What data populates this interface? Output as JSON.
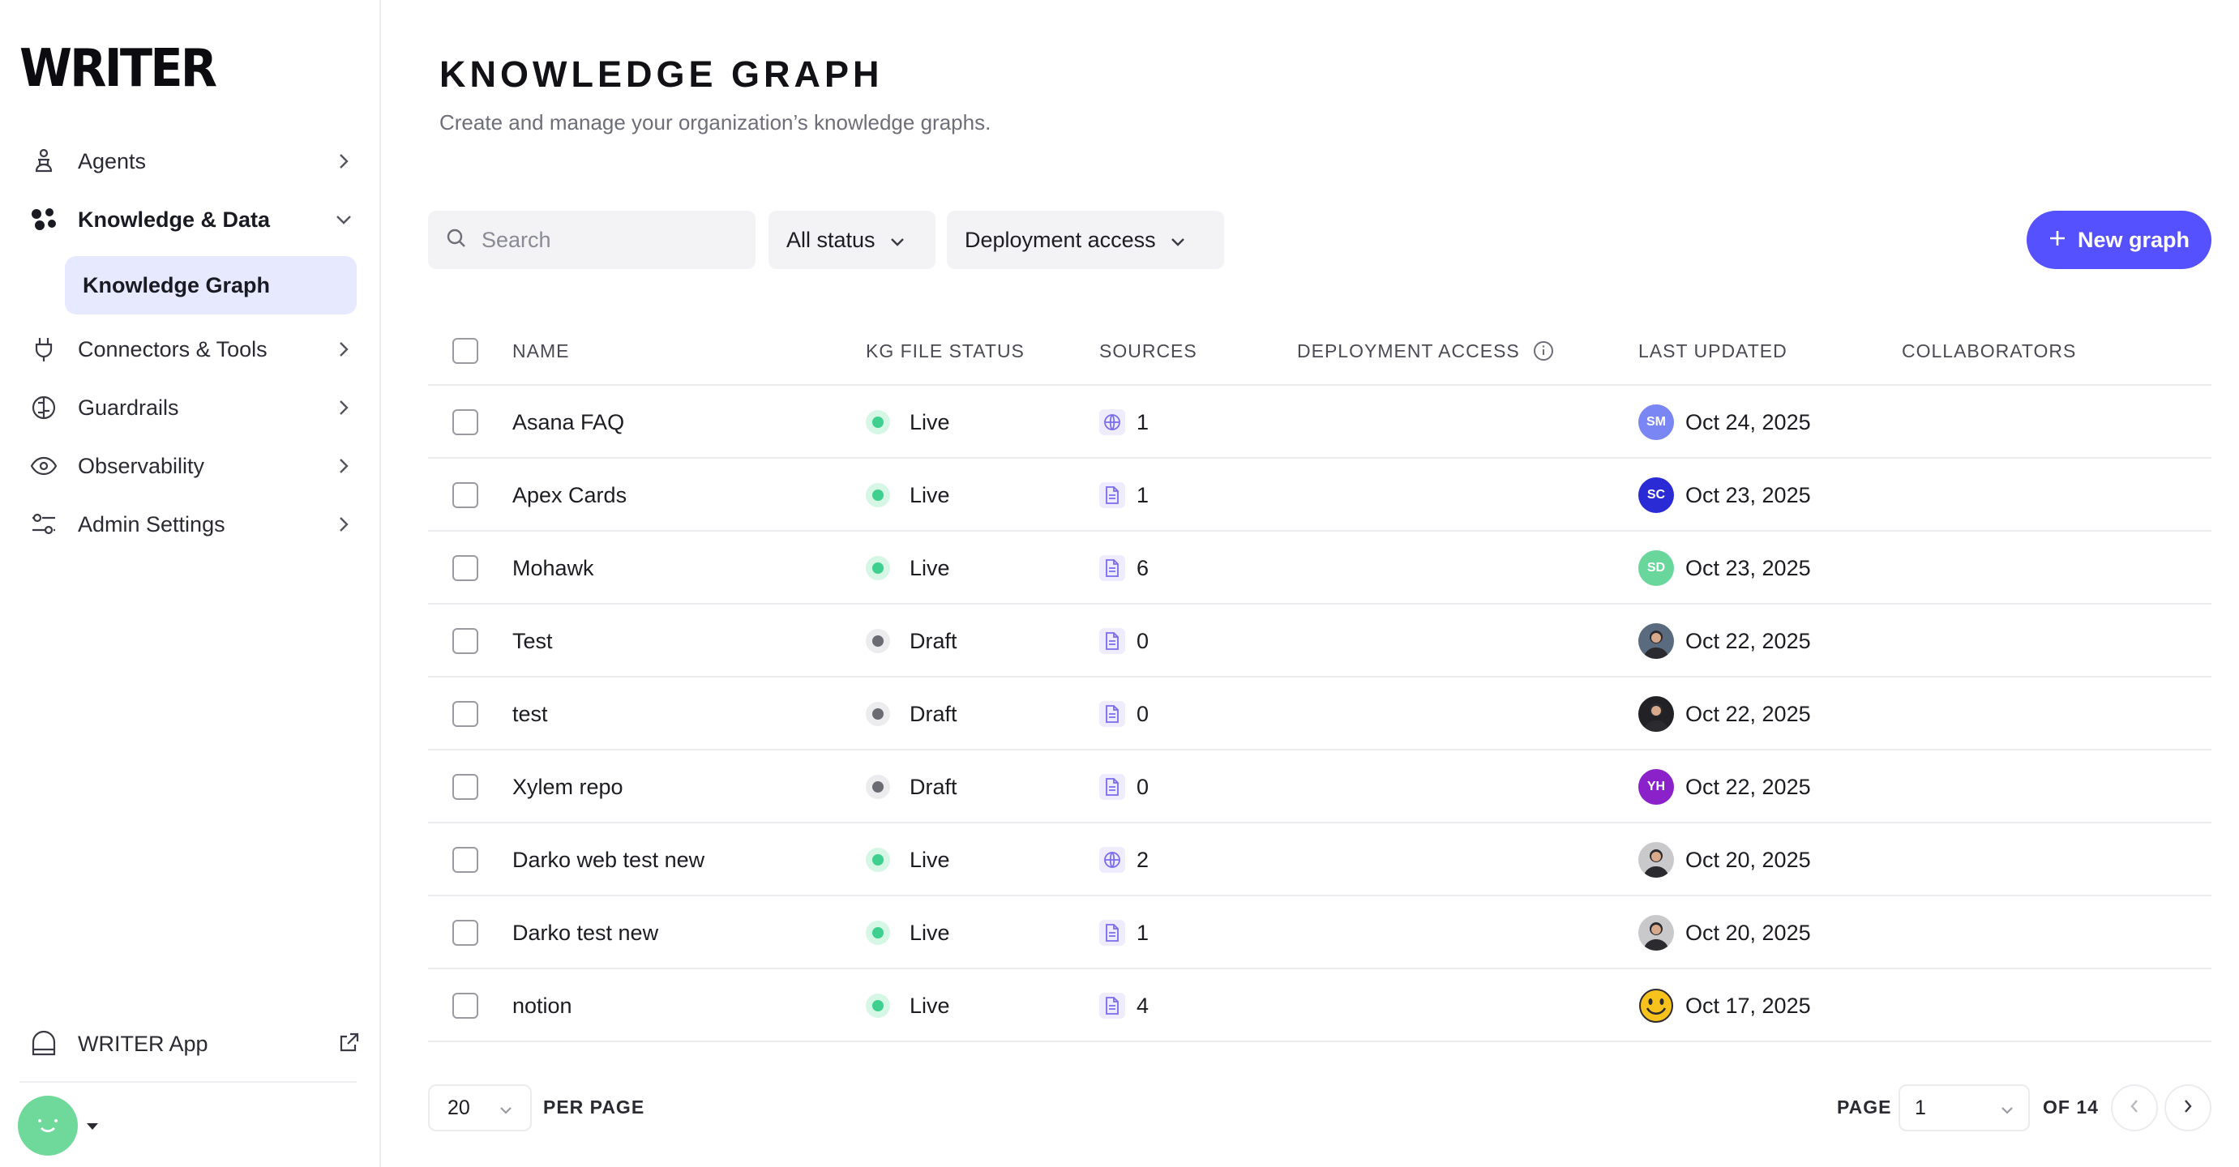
{
  "brand": {
    "logo_text": "WRITER"
  },
  "sidebar": {
    "items": [
      {
        "label": "Agents",
        "icon": "agent-icon"
      },
      {
        "label": "Knowledge & Data",
        "icon": "knowledge-icon"
      },
      {
        "label": "Connectors & Tools",
        "icon": "plug-icon"
      },
      {
        "label": "Guardrails",
        "icon": "guardrails-icon"
      },
      {
        "label": "Observability",
        "icon": "eye-icon"
      },
      {
        "label": "Admin Settings",
        "icon": "sliders-icon"
      }
    ],
    "sub_item": "Knowledge Graph",
    "writer_app": "WRITER App"
  },
  "header": {
    "title": "KNOWLEDGE GRAPH",
    "subtitle": "Create and manage your organization’s knowledge graphs."
  },
  "toolbar": {
    "search_placeholder": "Search",
    "status_filter": "All status",
    "access_filter": "Deployment access",
    "new_button": "New graph"
  },
  "table": {
    "columns": [
      "NAME",
      "KG FILE STATUS",
      "SOURCES",
      "DEPLOYMENT ACCESS",
      "LAST UPDATED",
      "COLLABORATORS"
    ],
    "rows": [
      {
        "name": "Asana FAQ",
        "status": "Live",
        "source_type": "web",
        "sources": "1",
        "avatar": "SM",
        "avatar_color": "#7b86f5",
        "updated": "Oct 24, 2025"
      },
      {
        "name": "Apex Cards",
        "status": "Live",
        "source_type": "file",
        "sources": "1",
        "avatar": "SC",
        "avatar_color": "#2b2bd6",
        "updated": "Oct 23, 2025"
      },
      {
        "name": "Mohawk",
        "status": "Live",
        "source_type": "file",
        "sources": "6",
        "avatar": "SD",
        "avatar_color": "#69d69c",
        "updated": "Oct 23, 2025"
      },
      {
        "name": "Test",
        "status": "Draft",
        "source_type": "file",
        "sources": "0",
        "avatar": "",
        "avatar_color": "#5a6b80",
        "updated": "Oct 22, 2025"
      },
      {
        "name": "test",
        "status": "Draft",
        "source_type": "file",
        "sources": "0",
        "avatar": "",
        "avatar_color": "#222226",
        "updated": "Oct 22, 2025"
      },
      {
        "name": "Xylem repo",
        "status": "Draft",
        "source_type": "file",
        "sources": "0",
        "avatar": "YH",
        "avatar_color": "#8b22c9",
        "updated": "Oct 22, 2025"
      },
      {
        "name": "Darko web test new",
        "status": "Live",
        "source_type": "web",
        "sources": "2",
        "avatar": "",
        "avatar_color": "#c9c9cc",
        "updated": "Oct 20, 2025"
      },
      {
        "name": "Darko test new",
        "status": "Live",
        "source_type": "file",
        "sources": "1",
        "avatar": "",
        "avatar_color": "#c9c9cc",
        "updated": "Oct 20, 2025"
      },
      {
        "name": "notion",
        "status": "Live",
        "source_type": "file",
        "sources": "4",
        "avatar": "",
        "avatar_color": "#f7c21b",
        "updated": "Oct 17, 2025"
      }
    ]
  },
  "pagination": {
    "per_page_value": "20",
    "per_page_label": "PER PAGE",
    "page_label": "PAGE",
    "page_value": "1",
    "of_label": "OF 14"
  },
  "colors": {
    "accent": "#5551ff",
    "live": "#3fcf8e",
    "draft": "#6b6b73",
    "selected_nav": "#e6e9ff"
  }
}
